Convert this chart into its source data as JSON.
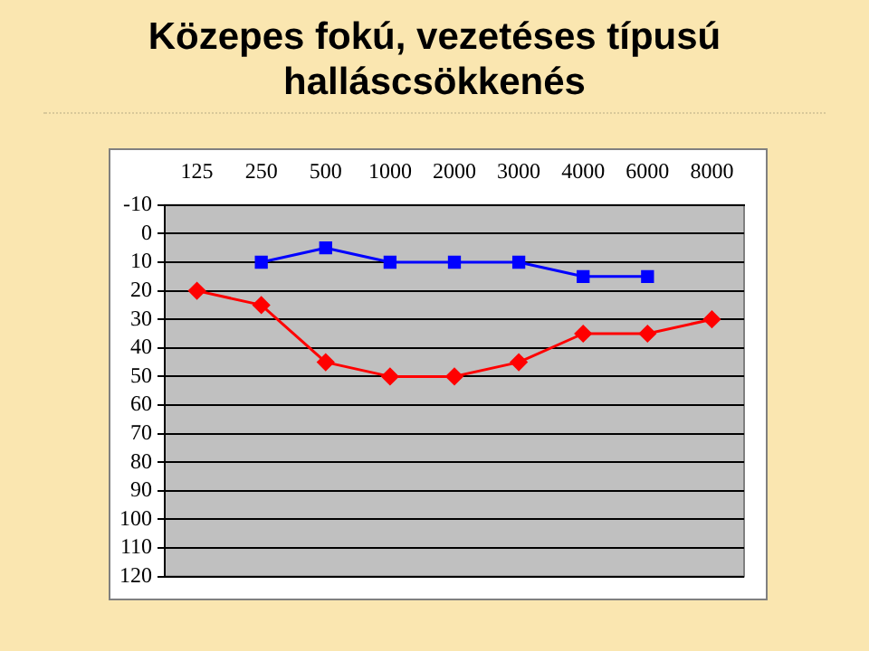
{
  "chart_data": {
    "type": "line",
    "title": "Közepes fokú, vezetéses típusú halláscsökkenés",
    "categories": [
      "125",
      "250",
      "500",
      "1000",
      "2000",
      "3000",
      "4000",
      "6000",
      "8000"
    ],
    "series": [
      {
        "color": "#0000ff",
        "marker": "square",
        "values": [
          null,
          10,
          5,
          10,
          10,
          10,
          15,
          15,
          null
        ]
      },
      {
        "color": "#ff0000",
        "marker": "diamond",
        "values": [
          20,
          25,
          45,
          50,
          50,
          45,
          35,
          35,
          30
        ]
      }
    ],
    "ylim": [
      120,
      -10
    ],
    "yticks": [
      -10,
      0,
      10,
      20,
      30,
      40,
      50,
      60,
      70,
      80,
      90,
      100,
      110,
      120
    ],
    "grid": "y",
    "legend": false
  }
}
